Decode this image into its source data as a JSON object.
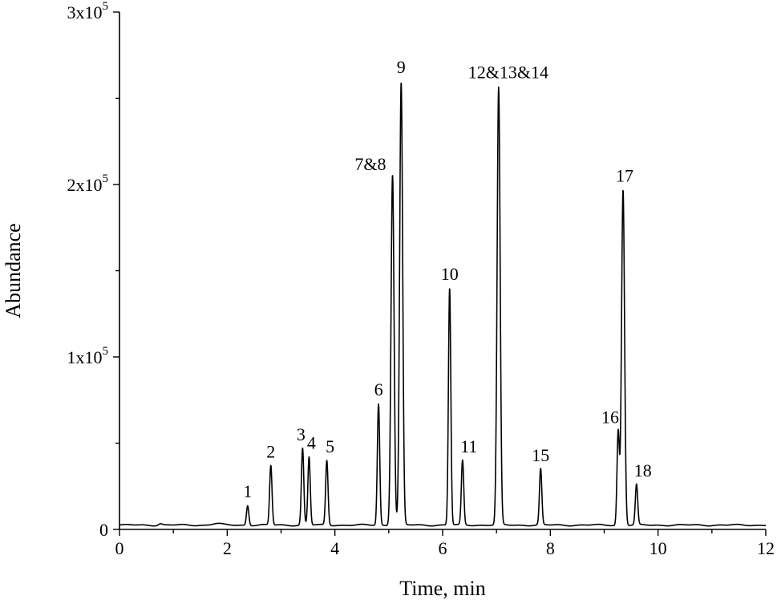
{
  "chart_data": {
    "type": "line",
    "xlabel": "Time, min",
    "ylabel": "Abundance",
    "xlim": [
      0,
      12
    ],
    "ylim": [
      0,
      300000
    ],
    "x_ticks": [
      {
        "value": 0,
        "label": "0"
      },
      {
        "value": 2,
        "label": "2"
      },
      {
        "value": 4,
        "label": "4"
      },
      {
        "value": 6,
        "label": "6"
      },
      {
        "value": 8,
        "label": "8"
      },
      {
        "value": 10,
        "label": "10"
      },
      {
        "value": 12,
        "label": "12"
      }
    ],
    "y_ticks": [
      {
        "value": 0,
        "label": "0"
      },
      {
        "value": 100000,
        "label": "1x10",
        "exp": "5"
      },
      {
        "value": 200000,
        "label": "2x10",
        "exp": "5"
      },
      {
        "value": 300000,
        "label": "3x10",
        "exp": "5"
      }
    ],
    "baseline": 2500,
    "peaks": [
      {
        "label": "1",
        "x": 2.38,
        "y": 14000
      },
      {
        "label": "2",
        "x": 2.81,
        "y": 37000
      },
      {
        "label": "3",
        "x": 3.4,
        "y": 47000
      },
      {
        "label": "4",
        "x": 3.52,
        "y": 42000
      },
      {
        "label": "5",
        "x": 3.85,
        "y": 40000
      },
      {
        "label": "6",
        "x": 4.81,
        "y": 73000
      },
      {
        "label": "7&8",
        "x": 5.07,
        "y": 206000
      },
      {
        "label": "9",
        "x": 5.23,
        "y": 259000
      },
      {
        "label": "10",
        "x": 6.13,
        "y": 140000
      },
      {
        "label": "11",
        "x": 6.37,
        "y": 40000
      },
      {
        "label": "12&13&14",
        "x": 7.04,
        "y": 256000
      },
      {
        "label": "15",
        "x": 7.82,
        "y": 35000
      },
      {
        "label": "16",
        "x": 9.26,
        "y": 57000
      },
      {
        "label": "17",
        "x": 9.35,
        "y": 197000
      },
      {
        "label": "18",
        "x": 9.6,
        "y": 26000
      }
    ],
    "grid": false,
    "line_color": "#000000"
  }
}
